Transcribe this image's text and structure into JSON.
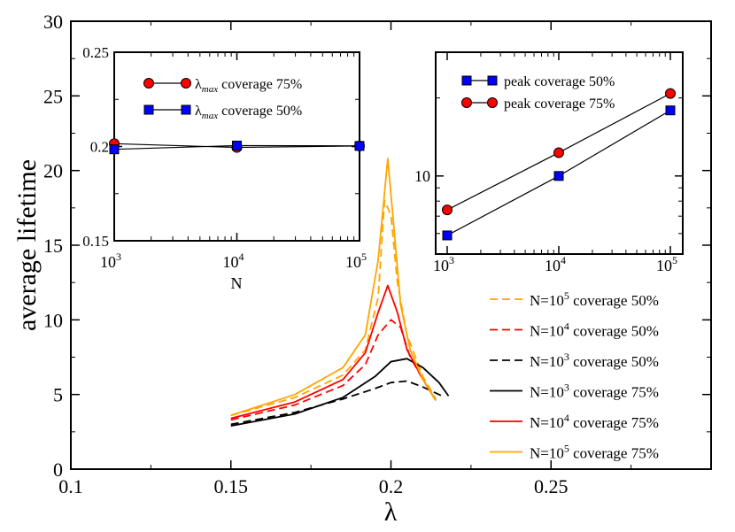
{
  "chart_data": [
    {
      "id": "main",
      "type": "line",
      "xlabel": "λ",
      "ylabel": "average lifetime",
      "xlim": [
        0.1,
        0.3
      ],
      "ylim": [
        0,
        30
      ],
      "xticks": [
        {
          "value": 0.1,
          "label": "0.1"
        },
        {
          "value": 0.15,
          "label": "0.15"
        },
        {
          "value": 0.2,
          "label": "0.2"
        },
        {
          "value": 0.25,
          "label": "0.25"
        }
      ],
      "yticks": [
        {
          "value": 0,
          "label": "0"
        },
        {
          "value": 5,
          "label": "5"
        },
        {
          "value": 10,
          "label": "10"
        },
        {
          "value": 15,
          "label": "15"
        },
        {
          "value": 20,
          "label": "20"
        },
        {
          "value": 25,
          "label": "25"
        },
        {
          "value": 30,
          "label": "30"
        }
      ],
      "legend_placement": "bottom-right",
      "series": [
        {
          "key": "n5c50",
          "name_base": "N=10",
          "name_exp": "5",
          "name_rest": " coverage 50%",
          "color": "#ffa500",
          "dash": true,
          "x": [
            0.15,
            0.17,
            0.185,
            0.192,
            0.196,
            0.198,
            0.2,
            0.202,
            0.205,
            0.21,
            0.214
          ],
          "y": [
            3.6,
            4.8,
            6.3,
            8.0,
            11.5,
            18.0,
            17.0,
            12.5,
            9.0,
            6.2,
            4.7
          ]
        },
        {
          "key": "n4c50",
          "name_base": "N=10",
          "name_exp": "4",
          "name_rest": " coverage 50%",
          "color": "#ff0000",
          "dash": true,
          "x": [
            0.15,
            0.17,
            0.185,
            0.192,
            0.196,
            0.2,
            0.203,
            0.206,
            0.21,
            0.214
          ],
          "y": [
            3.3,
            4.3,
            5.6,
            7.0,
            9.0,
            10.0,
            9.5,
            7.5,
            6.0,
            4.6
          ]
        },
        {
          "key": "n3c50",
          "name_base": "N=10",
          "name_exp": "3",
          "name_rest": " coverage 50%",
          "color": "#000000",
          "dash": true,
          "x": [
            0.15,
            0.17,
            0.185,
            0.195,
            0.2,
            0.205,
            0.21,
            0.216
          ],
          "y": [
            3.0,
            3.8,
            4.7,
            5.4,
            5.8,
            5.9,
            5.5,
            4.9
          ]
        },
        {
          "key": "n3c75",
          "name_base": "N=10",
          "name_exp": "3",
          "name_rest": " coverage 75%",
          "color": "#000000",
          "dash": false,
          "x": [
            0.15,
            0.17,
            0.185,
            0.195,
            0.2,
            0.205,
            0.21,
            0.215,
            0.218
          ],
          "y": [
            2.9,
            3.7,
            4.8,
            6.2,
            7.2,
            7.4,
            6.8,
            5.8,
            4.9
          ]
        },
        {
          "key": "n4c75",
          "name_base": "N=10",
          "name_exp": "4",
          "name_rest": " coverage 75%",
          "color": "#ff0000",
          "dash": false,
          "x": [
            0.15,
            0.17,
            0.185,
            0.192,
            0.196,
            0.199,
            0.202,
            0.205,
            0.21,
            0.214
          ],
          "y": [
            3.4,
            4.5,
            6.0,
            7.8,
            10.5,
            12.3,
            10.5,
            8.0,
            6.0,
            4.6
          ]
        },
        {
          "key": "n5c75",
          "name_base": "N=10",
          "name_exp": "5",
          "name_rest": " coverage 75%",
          "color": "#ffa500",
          "dash": false,
          "x": [
            0.15,
            0.17,
            0.185,
            0.192,
            0.196,
            0.199,
            0.201,
            0.203,
            0.206,
            0.21,
            0.214
          ],
          "y": [
            3.6,
            5.0,
            6.8,
            9.0,
            14.0,
            20.8,
            16.0,
            11.0,
            8.0,
            6.0,
            4.6
          ]
        }
      ]
    },
    {
      "id": "inset_left",
      "type": "line",
      "xlabel": "N",
      "ylabel": "",
      "xscale": "log",
      "xlim": [
        1000,
        100000
      ],
      "ylim": [
        0.15,
        0.25
      ],
      "xticks": [
        {
          "value": 1000,
          "base": "10",
          "exp": "3"
        },
        {
          "value": 10000,
          "base": "10",
          "exp": "4"
        },
        {
          "value": 100000,
          "base": "10",
          "exp": "5"
        }
      ],
      "yticks": [
        {
          "value": 0.15,
          "label": "0.15"
        },
        {
          "value": 0.2,
          "label": "0.2"
        },
        {
          "value": 0.25,
          "label": "0.25"
        }
      ],
      "legend_placement": "top-left",
      "series": [
        {
          "key": "lam75",
          "sym": "λ",
          "sub": "max",
          "rest": " coverage 75%",
          "marker": "circle",
          "color": "#ff0000",
          "x": [
            1000,
            10000,
            100000
          ],
          "y": [
            0.2015,
            0.1995,
            0.2003
          ]
        },
        {
          "key": "lam50",
          "sym": "λ",
          "sub": "max",
          "rest": " coverage 50%",
          "marker": "square",
          "color": "#0000ff",
          "x": [
            1000,
            10000,
            100000
          ],
          "y": [
            0.1985,
            0.2005,
            0.2003
          ]
        }
      ]
    },
    {
      "id": "inset_right",
      "type": "line",
      "xlabel": "",
      "ylabel": "",
      "xscale": "log",
      "yscale": "log",
      "xlim": [
        1000,
        100000
      ],
      "ylim": [
        5,
        30
      ],
      "xticks": [
        {
          "value": 1000,
          "base": "10",
          "exp": "3"
        },
        {
          "value": 10000,
          "base": "10",
          "exp": "4"
        },
        {
          "value": 100000,
          "base": "10",
          "exp": "5"
        }
      ],
      "yticks": [
        {
          "value": 10,
          "label": "10"
        }
      ],
      "legend_placement": "top-left",
      "series": [
        {
          "key": "peak50",
          "name": "peak coverage 50%",
          "marker": "square",
          "color": "#0000ff",
          "x": [
            1000,
            10000,
            100000
          ],
          "y": [
            5.9,
            10.0,
            17.9
          ]
        },
        {
          "key": "peak75",
          "name": "peak coverage 75%",
          "marker": "circle",
          "color": "#ff0000",
          "x": [
            1000,
            10000,
            100000
          ],
          "y": [
            7.4,
            12.3,
            20.8
          ]
        }
      ]
    }
  ]
}
